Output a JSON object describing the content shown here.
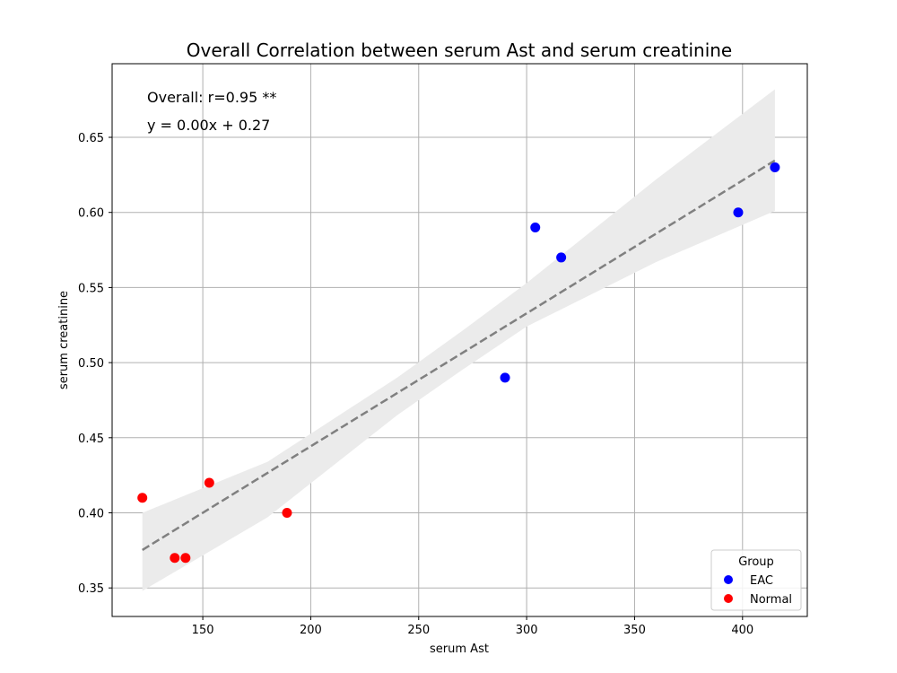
{
  "chart_data": {
    "type": "scatter",
    "title": "Overall Correlation between serum Ast and serum creatinine",
    "xlabel": "serum Ast",
    "ylabel": "serum creatinine",
    "xlim": [
      108,
      430
    ],
    "ylim": [
      0.331,
      0.699
    ],
    "xticks": [
      150,
      200,
      250,
      300,
      350,
      400
    ],
    "yticks": [
      0.35,
      0.4,
      0.45,
      0.5,
      0.55,
      0.6,
      0.65
    ],
    "x_tick_labels": [
      "150",
      "200",
      "250",
      "300",
      "350",
      "400"
    ],
    "y_tick_labels": [
      "0.35",
      "0.40",
      "0.45",
      "0.50",
      "0.55",
      "0.60",
      "0.65"
    ],
    "grid": true,
    "annotations": [
      "Overall: r=0.95 **",
      "y = 0.00x + 0.27"
    ],
    "legend": {
      "title": "Group",
      "placement": "lower-right",
      "entries": [
        "EAC",
        "Normal"
      ]
    },
    "series": [
      {
        "name": "EAC",
        "color": "#0000ff",
        "points": [
          {
            "x": 290,
            "y": 0.49
          },
          {
            "x": 304,
            "y": 0.59
          },
          {
            "x": 316,
            "y": 0.57
          },
          {
            "x": 398,
            "y": 0.6
          },
          {
            "x": 415,
            "y": 0.63
          }
        ]
      },
      {
        "name": "Normal",
        "color": "#ff0000",
        "points": [
          {
            "x": 122,
            "y": 0.41
          },
          {
            "x": 137,
            "y": 0.37
          },
          {
            "x": 142,
            "y": 0.37
          },
          {
            "x": 153,
            "y": 0.42
          },
          {
            "x": 189,
            "y": 0.4
          }
        ]
      }
    ],
    "regression": {
      "slope": 0.000885,
      "intercept": 0.2673,
      "x_range": [
        122,
        415
      ],
      "line_color": "#808080",
      "band_color": "#ebebeb",
      "band": [
        {
          "x": 122,
          "lower": 0.348,
          "upper": 0.4
        },
        {
          "x": 180,
          "lower": 0.397,
          "upper": 0.434
        },
        {
          "x": 240,
          "lower": 0.465,
          "upper": 0.49
        },
        {
          "x": 270,
          "lower": 0.495,
          "upper": 0.521
        },
        {
          "x": 300,
          "lower": 0.524,
          "upper": 0.553
        },
        {
          "x": 360,
          "lower": 0.567,
          "upper": 0.622
        },
        {
          "x": 415,
          "lower": 0.601,
          "upper": 0.682
        }
      ]
    }
  }
}
